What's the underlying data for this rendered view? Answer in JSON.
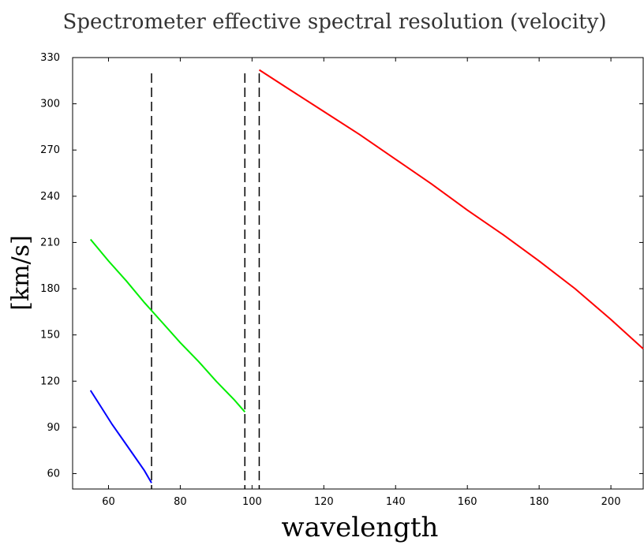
{
  "chart_data": {
    "type": "line",
    "title": "Spectrometer effective spectral resolution (velocity)",
    "xlabel": "wavelength",
    "ylabel": "[km/s]",
    "xlim": [
      50,
      209
    ],
    "ylim": [
      50,
      330
    ],
    "xticks": [
      60,
      80,
      100,
      120,
      140,
      160,
      180,
      200
    ],
    "yticks": [
      60,
      90,
      120,
      150,
      180,
      210,
      240,
      270,
      300,
      330
    ],
    "grid": false,
    "legend": "none",
    "series": [
      {
        "color": "#0000ff",
        "points": [
          [
            55,
            114
          ],
          [
            58,
            103
          ],
          [
            61,
            92
          ],
          [
            64,
            82
          ],
          [
            67,
            72
          ],
          [
            70,
            62
          ],
          [
            72,
            54
          ]
        ]
      },
      {
        "color": "#00ee00",
        "points": [
          [
            55,
            212
          ],
          [
            60,
            198
          ],
          [
            65,
            185
          ],
          [
            70,
            171
          ],
          [
            75,
            158
          ],
          [
            80,
            145
          ],
          [
            85,
            133
          ],
          [
            90,
            120
          ],
          [
            95,
            108
          ],
          [
            98,
            100
          ]
        ]
      },
      {
        "color": "#ff0000",
        "points": [
          [
            102,
            322
          ],
          [
            110,
            310
          ],
          [
            120,
            295
          ],
          [
            130,
            280
          ],
          [
            140,
            264
          ],
          [
            150,
            248
          ],
          [
            160,
            231
          ],
          [
            170,
            215
          ],
          [
            180,
            198
          ],
          [
            190,
            180
          ],
          [
            200,
            160
          ],
          [
            209,
            141
          ]
        ]
      }
    ],
    "vlines": [
      {
        "x": 72,
        "style": "dashed",
        "color": "#000000"
      },
      {
        "x": 98,
        "style": "dashed",
        "color": "#000000"
      },
      {
        "x": 102,
        "style": "dashed",
        "color": "#000000"
      }
    ]
  }
}
